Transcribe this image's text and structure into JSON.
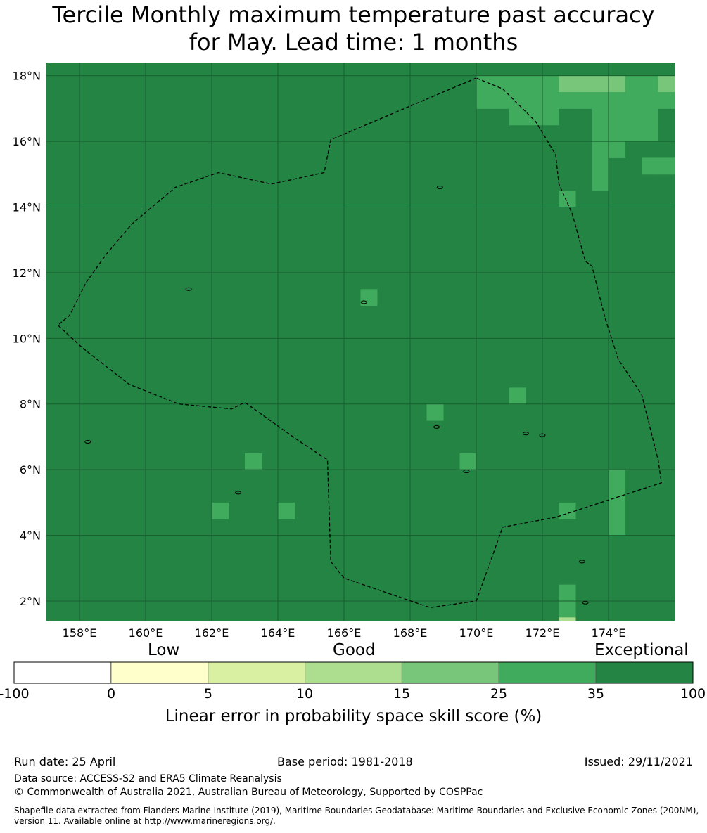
{
  "title_line1": "Tercile Monthly maximum temperature past accuracy",
  "title_line2": "for May. Lead time: 1 months",
  "map": {
    "lon_range": [
      157,
      176
    ],
    "lat_range": [
      1.4,
      18.4
    ],
    "lon_ticks": [
      "158°E",
      "160°E",
      "162°E",
      "164°E",
      "166°E",
      "168°E",
      "170°E",
      "172°E",
      "174°E"
    ],
    "lat_ticks": [
      "18°N",
      "16°N",
      "14°N",
      "12°N",
      "10°N",
      "8°N",
      "6°N",
      "4°N",
      "2°N"
    ],
    "background_color": "#238443",
    "grid_color": "#1a5e30",
    "boundary_color": "#000000",
    "cells": [
      {
        "lon": 170.0,
        "lat": 17.5,
        "color": "#41ab5d"
      },
      {
        "lon": 170.5,
        "lat": 17.5,
        "color": "#41ab5d"
      },
      {
        "lon": 171.0,
        "lat": 17.5,
        "color": "#41ab5d"
      },
      {
        "lon": 171.5,
        "lat": 17.5,
        "color": "#41ab5d"
      },
      {
        "lon": 172.0,
        "lat": 17.5,
        "color": "#41ab5d"
      },
      {
        "lon": 172.5,
        "lat": 17.5,
        "color": "#78c679"
      },
      {
        "lon": 173.0,
        "lat": 17.5,
        "color": "#78c679"
      },
      {
        "lon": 173.5,
        "lat": 17.5,
        "color": "#78c679"
      },
      {
        "lon": 174.0,
        "lat": 17.5,
        "color": "#78c679"
      },
      {
        "lon": 174.5,
        "lat": 17.5,
        "color": "#41ab5d"
      },
      {
        "lon": 175.0,
        "lat": 17.5,
        "color": "#41ab5d"
      },
      {
        "lon": 175.5,
        "lat": 17.5,
        "color": "#78c679"
      },
      {
        "lon": 170.0,
        "lat": 17.0,
        "color": "#41ab5d"
      },
      {
        "lon": 170.5,
        "lat": 17.0,
        "color": "#41ab5d"
      },
      {
        "lon": 171.0,
        "lat": 17.0,
        "color": "#41ab5d"
      },
      {
        "lon": 171.5,
        "lat": 17.0,
        "color": "#41ab5d"
      },
      {
        "lon": 172.0,
        "lat": 17.0,
        "color": "#41ab5d"
      },
      {
        "lon": 172.5,
        "lat": 17.0,
        "color": "#41ab5d"
      },
      {
        "lon": 173.0,
        "lat": 17.0,
        "color": "#41ab5d"
      },
      {
        "lon": 173.5,
        "lat": 17.0,
        "color": "#41ab5d"
      },
      {
        "lon": 174.0,
        "lat": 17.0,
        "color": "#41ab5d"
      },
      {
        "lon": 174.5,
        "lat": 17.0,
        "color": "#41ab5d"
      },
      {
        "lon": 175.0,
        "lat": 17.0,
        "color": "#41ab5d"
      },
      {
        "lon": 175.5,
        "lat": 17.0,
        "color": "#41ab5d"
      },
      {
        "lon": 171.0,
        "lat": 16.5,
        "color": "#41ab5d"
      },
      {
        "lon": 171.5,
        "lat": 16.5,
        "color": "#41ab5d"
      },
      {
        "lon": 172.0,
        "lat": 16.5,
        "color": "#41ab5d"
      },
      {
        "lon": 173.5,
        "lat": 16.5,
        "color": "#41ab5d"
      },
      {
        "lon": 174.0,
        "lat": 16.5,
        "color": "#41ab5d"
      },
      {
        "lon": 174.5,
        "lat": 16.5,
        "color": "#41ab5d"
      },
      {
        "lon": 175.0,
        "lat": 16.5,
        "color": "#41ab5d"
      },
      {
        "lon": 173.5,
        "lat": 16.0,
        "color": "#41ab5d"
      },
      {
        "lon": 174.0,
        "lat": 16.0,
        "color": "#41ab5d"
      },
      {
        "lon": 174.5,
        "lat": 16.0,
        "color": "#41ab5d"
      },
      {
        "lon": 175.0,
        "lat": 16.0,
        "color": "#41ab5d"
      },
      {
        "lon": 173.5,
        "lat": 15.5,
        "color": "#41ab5d"
      },
      {
        "lon": 174.0,
        "lat": 15.5,
        "color": "#41ab5d"
      },
      {
        "lon": 173.5,
        "lat": 15.0,
        "color": "#41ab5d"
      },
      {
        "lon": 175.0,
        "lat": 15.0,
        "color": "#41ab5d"
      },
      {
        "lon": 175.5,
        "lat": 15.0,
        "color": "#41ab5d"
      },
      {
        "lon": 173.5,
        "lat": 14.5,
        "color": "#41ab5d"
      },
      {
        "lon": 172.5,
        "lat": 14.0,
        "color": "#41ab5d"
      },
      {
        "lon": 166.5,
        "lat": 11.0,
        "color": "#41ab5d"
      },
      {
        "lon": 171.0,
        "lat": 8.0,
        "color": "#41ab5d"
      },
      {
        "lon": 168.5,
        "lat": 7.5,
        "color": "#41ab5d"
      },
      {
        "lon": 163.0,
        "lat": 6.0,
        "color": "#41ab5d"
      },
      {
        "lon": 169.5,
        "lat": 6.0,
        "color": "#41ab5d"
      },
      {
        "lon": 174.0,
        "lat": 5.5,
        "color": "#41ab5d"
      },
      {
        "lon": 162.0,
        "lat": 4.5,
        "color": "#41ab5d"
      },
      {
        "lon": 164.0,
        "lat": 4.5,
        "color": "#41ab5d"
      },
      {
        "lon": 172.5,
        "lat": 4.5,
        "color": "#41ab5d"
      },
      {
        "lon": 174.0,
        "lat": 5.0,
        "color": "#41ab5d"
      },
      {
        "lon": 174.0,
        "lat": 4.5,
        "color": "#41ab5d"
      },
      {
        "lon": 174.0,
        "lat": 4.0,
        "color": "#41ab5d"
      },
      {
        "lon": 172.5,
        "lat": 2.0,
        "color": "#41ab5d"
      },
      {
        "lon": 172.5,
        "lat": 1.5,
        "color": "#41ab5d"
      },
      {
        "lon": 172.5,
        "lat": 1.0,
        "color": "#addd8e"
      }
    ],
    "boundary": [
      [
        170.0,
        17.93
      ],
      [
        165.6,
        16.05
      ],
      [
        165.4,
        15.05
      ],
      [
        163.8,
        14.7
      ],
      [
        162.2,
        15.05
      ],
      [
        160.9,
        14.6
      ],
      [
        159.6,
        13.5
      ],
      [
        158.8,
        12.55
      ],
      [
        158.2,
        11.7
      ],
      [
        157.7,
        10.7
      ],
      [
        157.35,
        10.4
      ],
      [
        158.1,
        9.7
      ],
      [
        159.5,
        8.6
      ],
      [
        161.0,
        8.0
      ],
      [
        162.6,
        7.85
      ],
      [
        163.0,
        8.05
      ],
      [
        164.6,
        6.9
      ],
      [
        165.5,
        6.3
      ],
      [
        165.6,
        3.2
      ],
      [
        166.0,
        2.7
      ],
      [
        168.6,
        1.8
      ],
      [
        170.0,
        2.0
      ],
      [
        170.8,
        4.25
      ],
      [
        172.4,
        4.55
      ],
      [
        175.6,
        5.6
      ],
      [
        175.5,
        6.3
      ],
      [
        175.0,
        8.3
      ],
      [
        174.3,
        9.35
      ],
      [
        173.9,
        10.6
      ],
      [
        173.5,
        12.2
      ],
      [
        173.3,
        12.35
      ],
      [
        172.9,
        13.8
      ],
      [
        172.5,
        14.7
      ],
      [
        172.4,
        15.6
      ],
      [
        171.8,
        16.6
      ],
      [
        170.8,
        17.6
      ],
      [
        170.0,
        17.93
      ]
    ]
  },
  "colorbar": {
    "categories": [
      "Low",
      "Good",
      "Exceptional"
    ],
    "ticks": [
      "-100",
      "0",
      "5",
      "10",
      "15",
      "25",
      "35",
      "100"
    ],
    "colors": [
      "#ffffff",
      "#ffffcc",
      "#d9f0a3",
      "#addd8e",
      "#78c679",
      "#41ab5d",
      "#238443"
    ],
    "label": "Linear error in probability space skill score (%)"
  },
  "footer": {
    "run_date": "Run date: 25 April",
    "base_period": "Base period: 1981-2018",
    "issued": "Issued: 29/11/2021",
    "data_source": "Data source: ACCESS-S2 and ERA5 Climate Reanalysis",
    "copyright": "© Commonwealth of Australia 2021, Australian Bureau of Meteorology, Supported by COSPPac",
    "shapefile_line1": "Shapefile data extracted from Flanders Marine Institute (2019), Maritime Boundaries Geodatabase: Maritime Boundaries and Exclusive Economic Zones (200NM),",
    "shapefile_line2": "version 11. Available online at http://www.marineregions.org/."
  }
}
